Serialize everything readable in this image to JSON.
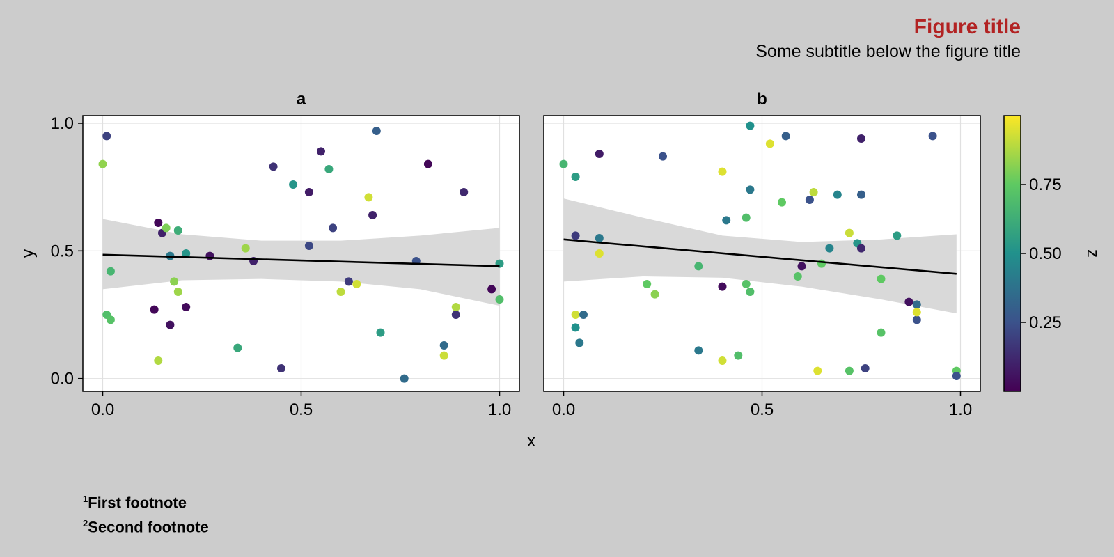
{
  "figure": {
    "title": "Figure title",
    "subtitle": "Some subtitle below the figure title"
  },
  "footnotes": [
    {
      "mark": "1",
      "text": "First footnote"
    },
    {
      "mark": "2",
      "text": "Second footnote"
    }
  ],
  "colors": {
    "background": "#cccccc",
    "title": "#b22222",
    "band": "#d9d9d9",
    "fit_line": "#000000",
    "colormap": [
      "#440154",
      "#3b528b",
      "#21918c",
      "#5ec962",
      "#fde725"
    ]
  },
  "chart_data": [
    {
      "type": "scatter",
      "title": "a",
      "xlabel": "x",
      "ylabel": "y",
      "xlim": [
        -0.05,
        1.05
      ],
      "ylim": [
        -0.05,
        1.03
      ],
      "xticks": [
        "0.0",
        "0.5",
        "1.0"
      ],
      "yticks": [
        "0.0",
        "0.5",
        "1.0"
      ],
      "grid": true,
      "points": [
        [
          0.01,
          0.95,
          0.2
        ],
        [
          0.0,
          0.84,
          0.83
        ],
        [
          0.02,
          0.42,
          0.66
        ],
        [
          0.01,
          0.25,
          0.7
        ],
        [
          0.02,
          0.23,
          0.72
        ],
        [
          0.14,
          0.61,
          0.02
        ],
        [
          0.15,
          0.57,
          0.1
        ],
        [
          0.16,
          0.59,
          0.8
        ],
        [
          0.19,
          0.58,
          0.62
        ],
        [
          0.17,
          0.48,
          0.4
        ],
        [
          0.21,
          0.49,
          0.52
        ],
        [
          0.13,
          0.27,
          0.02
        ],
        [
          0.17,
          0.21,
          0.05
        ],
        [
          0.18,
          0.38,
          0.82
        ],
        [
          0.19,
          0.34,
          0.85
        ],
        [
          0.21,
          0.28,
          0.03
        ],
        [
          0.14,
          0.07,
          0.88
        ],
        [
          0.27,
          0.48,
          0.05
        ],
        [
          0.34,
          0.12,
          0.6
        ],
        [
          0.36,
          0.51,
          0.85
        ],
        [
          0.38,
          0.46,
          0.1
        ],
        [
          0.43,
          0.83,
          0.15
        ],
        [
          0.45,
          0.04,
          0.15
        ],
        [
          0.48,
          0.76,
          0.52
        ],
        [
          0.52,
          0.73,
          0.08
        ],
        [
          0.55,
          0.89,
          0.1
        ],
        [
          0.57,
          0.82,
          0.6
        ],
        [
          0.58,
          0.59,
          0.2
        ],
        [
          0.52,
          0.52,
          0.22
        ],
        [
          0.6,
          0.34,
          0.9
        ],
        [
          0.62,
          0.38,
          0.18
        ],
        [
          0.64,
          0.37,
          0.93
        ],
        [
          0.67,
          0.71,
          0.93
        ],
        [
          0.68,
          0.64,
          0.1
        ],
        [
          0.69,
          0.97,
          0.3
        ],
        [
          0.7,
          0.18,
          0.55
        ],
        [
          0.76,
          0.0,
          0.35
        ],
        [
          0.79,
          0.46,
          0.25
        ],
        [
          0.82,
          0.84,
          0.02
        ],
        [
          0.86,
          0.09,
          0.92
        ],
        [
          0.86,
          0.13,
          0.35
        ],
        [
          0.89,
          0.25,
          0.15
        ],
        [
          0.89,
          0.28,
          0.88
        ],
        [
          0.91,
          0.73,
          0.12
        ],
        [
          0.98,
          0.35,
          0.02
        ],
        [
          1.0,
          0.45,
          0.55
        ],
        [
          1.0,
          0.31,
          0.7
        ]
      ],
      "fit": {
        "y0": 0.485,
        "y1": 0.44
      },
      "band": {
        "x": [
          0.0,
          0.2,
          0.4,
          0.6,
          0.8,
          1.0
        ],
        "upper": [
          0.625,
          0.565,
          0.54,
          0.54,
          0.56,
          0.59
        ],
        "lower": [
          0.35,
          0.385,
          0.39,
          0.38,
          0.35,
          0.285
        ]
      }
    },
    {
      "type": "scatter",
      "title": "b",
      "xlabel": "x",
      "ylabel": "",
      "xlim": [
        -0.05,
        1.05
      ],
      "ylim": [
        -0.05,
        1.03
      ],
      "xticks": [
        "0.0",
        "0.5",
        "1.0"
      ],
      "yticks": [],
      "grid": true,
      "points": [
        [
          0.0,
          0.84,
          0.66
        ],
        [
          0.03,
          0.79,
          0.55
        ],
        [
          0.03,
          0.56,
          0.18
        ],
        [
          0.03,
          0.25,
          0.93
        ],
        [
          0.03,
          0.2,
          0.5
        ],
        [
          0.04,
          0.14,
          0.4
        ],
        [
          0.05,
          0.25,
          0.35
        ],
        [
          0.09,
          0.55,
          0.4
        ],
        [
          0.09,
          0.49,
          0.95
        ],
        [
          0.09,
          0.88,
          0.08
        ],
        [
          0.25,
          0.87,
          0.25
        ],
        [
          0.21,
          0.37,
          0.75
        ],
        [
          0.23,
          0.33,
          0.82
        ],
        [
          0.34,
          0.44,
          0.66
        ],
        [
          0.34,
          0.11,
          0.4
        ],
        [
          0.4,
          0.81,
          0.95
        ],
        [
          0.4,
          0.36,
          0.03
        ],
        [
          0.4,
          0.07,
          0.93
        ],
        [
          0.41,
          0.62,
          0.4
        ],
        [
          0.44,
          0.09,
          0.7
        ],
        [
          0.46,
          0.63,
          0.7
        ],
        [
          0.46,
          0.37,
          0.72
        ],
        [
          0.47,
          0.34,
          0.7
        ],
        [
          0.47,
          0.74,
          0.4
        ],
        [
          0.47,
          0.99,
          0.5
        ],
        [
          0.52,
          0.92,
          0.95
        ],
        [
          0.55,
          0.69,
          0.75
        ],
        [
          0.56,
          0.95,
          0.3
        ],
        [
          0.59,
          0.4,
          0.72
        ],
        [
          0.6,
          0.44,
          0.05
        ],
        [
          0.62,
          0.7,
          0.25
        ],
        [
          0.63,
          0.73,
          0.9
        ],
        [
          0.64,
          0.03,
          0.95
        ],
        [
          0.65,
          0.45,
          0.75
        ],
        [
          0.67,
          0.51,
          0.45
        ],
        [
          0.69,
          0.72,
          0.45
        ],
        [
          0.72,
          0.57,
          0.92
        ],
        [
          0.72,
          0.03,
          0.72
        ],
        [
          0.74,
          0.53,
          0.52
        ],
        [
          0.75,
          0.72,
          0.3
        ],
        [
          0.75,
          0.51,
          0.12
        ],
        [
          0.75,
          0.94,
          0.1
        ],
        [
          0.76,
          0.04,
          0.2
        ],
        [
          0.8,
          0.39,
          0.75
        ],
        [
          0.8,
          0.18,
          0.72
        ],
        [
          0.84,
          0.56,
          0.55
        ],
        [
          0.87,
          0.3,
          0.05
        ],
        [
          0.89,
          0.23,
          0.25
        ],
        [
          0.89,
          0.29,
          0.35
        ],
        [
          0.89,
          0.26,
          0.95
        ],
        [
          0.93,
          0.95,
          0.25
        ],
        [
          0.99,
          0.03,
          0.75
        ],
        [
          0.99,
          0.01,
          0.25
        ]
      ],
      "fit": {
        "y0": 0.545,
        "y1": 0.41
      },
      "band": {
        "x": [
          0.0,
          0.2,
          0.4,
          0.6,
          0.8,
          0.99
        ],
        "upper": [
          0.705,
          0.63,
          0.56,
          0.535,
          0.545,
          0.565
        ],
        "lower": [
          0.38,
          0.4,
          0.395,
          0.36,
          0.31,
          0.255
        ]
      }
    }
  ],
  "colorbar": {
    "label": "z",
    "range": [
      0.0,
      1.0
    ],
    "ticks": [
      "0.25",
      "0.50",
      "0.75"
    ],
    "tick_values": [
      0.25,
      0.5,
      0.75
    ]
  }
}
